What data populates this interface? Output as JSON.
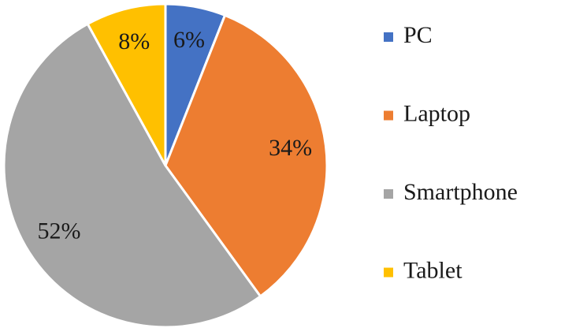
{
  "chart_data": {
    "type": "pie",
    "categories": [
      "PC",
      "Laptop",
      "Smartphone",
      "Tablet"
    ],
    "values": [
      6,
      34,
      52,
      8
    ],
    "value_labels": [
      "6%",
      "34%",
      "52%",
      "8%"
    ],
    "colors": [
      "#4472c4",
      "#ed7d31",
      "#a5a5a5",
      "#ffc000"
    ],
    "legend": "right"
  }
}
